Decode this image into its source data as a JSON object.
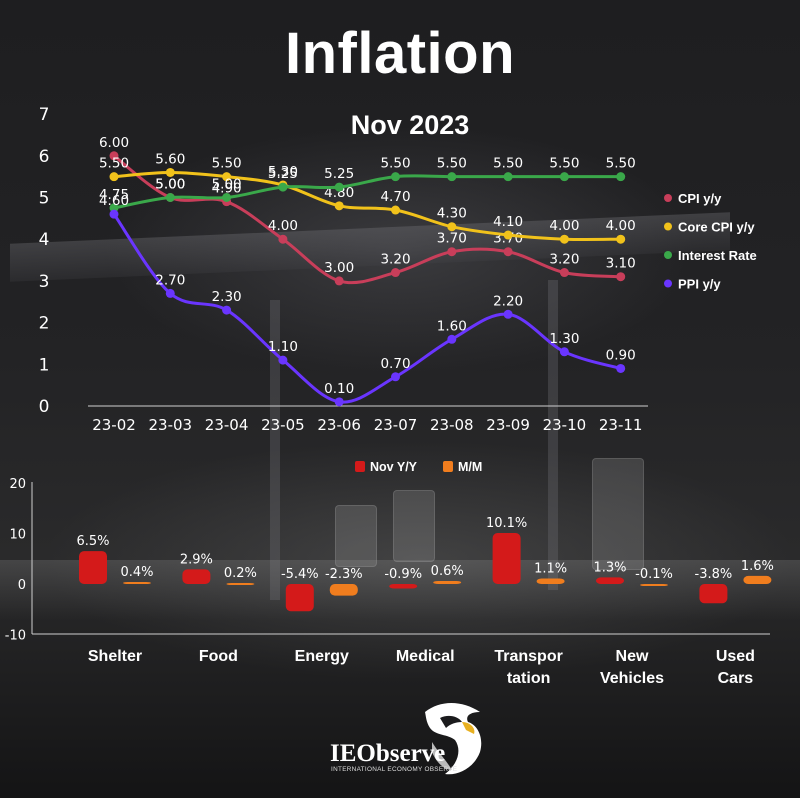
{
  "page": {
    "title": "Inflation",
    "logo_name": "IEObserve",
    "logo_tagline": "INTERNATIONAL ECONOMY OBSERVE"
  },
  "colors": {
    "cpi": "#c83e5a",
    "core_cpi": "#f1c21b",
    "interest_rate": "#3aa84a",
    "ppi": "#6a35ff",
    "nov_yy": "#d41a1a",
    "mm": "#f07d1e"
  },
  "chart_data": [
    {
      "type": "line",
      "title": "Nov 2023",
      "x": [
        "23-02",
        "23-03",
        "23-04",
        "23-05",
        "23-06",
        "23-07",
        "23-08",
        "23-09",
        "23-10",
        "23-11"
      ],
      "ylim": [
        0,
        7
      ],
      "yticks": [
        "0",
        "1",
        "2",
        "3",
        "4",
        "5",
        "6",
        "7"
      ],
      "legend_position": "right",
      "grid": false,
      "series": [
        {
          "name": "CPI y/y",
          "color_key": "cpi",
          "values": [
            6.0,
            5.0,
            4.9,
            4.0,
            3.0,
            3.2,
            3.7,
            3.7,
            3.2,
            3.1
          ],
          "labels": [
            "6.00",
            "5.00",
            "4.90",
            "4.00",
            "3.00",
            "3.20",
            "3.70",
            "3.70",
            "3.20",
            "3.10"
          ]
        },
        {
          "name": "Core CPI y/y",
          "color_key": "core_cpi",
          "values": [
            5.5,
            5.6,
            5.5,
            5.3,
            4.8,
            4.7,
            4.3,
            4.1,
            4.0,
            4.0
          ],
          "labels": [
            "5.50",
            "5.60",
            "5.50",
            "5.30",
            "4.80",
            "4.70",
            "4.30",
            "4.10",
            "4.00",
            "4.00"
          ]
        },
        {
          "name": "Interest Rate",
          "color_key": "interest_rate",
          "values": [
            4.75,
            5.0,
            5.0,
            5.25,
            5.25,
            5.5,
            5.5,
            5.5,
            5.5,
            5.5
          ],
          "labels": [
            "4.75",
            "5.00",
            "5.00",
            "5.25",
            "5.25",
            "5.50",
            "5.50",
            "5.50",
            "5.50",
            "5.50"
          ]
        },
        {
          "name": "PPI y/y",
          "color_key": "ppi",
          "values": [
            4.6,
            2.7,
            2.3,
            1.1,
            0.1,
            0.7,
            1.6,
            2.2,
            1.3,
            0.9
          ],
          "labels": [
            "4.60",
            "2.70",
            "2.30",
            "1.10",
            "0.10",
            "0.70",
            "1.60",
            "2.20",
            "1.30",
            "0.90"
          ]
        }
      ]
    },
    {
      "type": "bar",
      "categories": [
        [
          "Shelter"
        ],
        [
          "Food"
        ],
        [
          "Energy"
        ],
        [
          "Medical"
        ],
        [
          "Transpor",
          "tation"
        ],
        [
          "New",
          "Vehicles"
        ],
        [
          "Used",
          "Cars"
        ]
      ],
      "ylim": [
        -10,
        20
      ],
      "yticks": [
        "-10",
        "0",
        "10",
        "20"
      ],
      "legend_position": "top-center",
      "grid": false,
      "series": [
        {
          "name": "Nov Y/Y",
          "color_key": "nov_yy",
          "values": [
            6.5,
            2.9,
            -5.4,
            -0.9,
            10.1,
            1.3,
            -3.8
          ],
          "labels": [
            "6.5%",
            "2.9%",
            "-5.4%",
            "-0.9%",
            "10.1%",
            "1.3%",
            "-3.8%"
          ]
        },
        {
          "name": "M/M",
          "color_key": "mm",
          "values": [
            0.4,
            0.2,
            -2.3,
            0.6,
            1.1,
            -0.1,
            1.6
          ],
          "labels": [
            "0.4%",
            "0.2%",
            "-2.3%",
            "0.6%",
            "1.1%",
            "-0.1%",
            "1.6%"
          ]
        }
      ]
    }
  ]
}
